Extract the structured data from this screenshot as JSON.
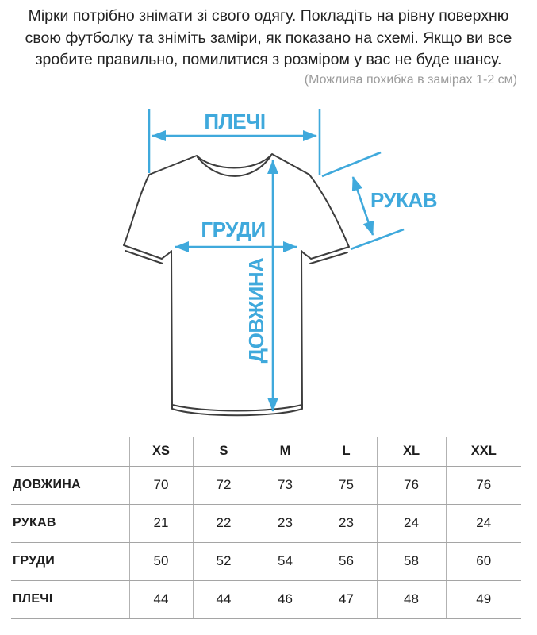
{
  "intro": {
    "lines": [
      "Мірки потрібно знімати зі свого одягу. Покладіть на рівну поверхню",
      "свою футболку та зніміть заміри, як показано на схемі. Якщо ви все",
      "зробите правильно, помилитися з розміром у вас не буде шансу."
    ],
    "note": "(Можлива похибка в замірах 1-2 см)"
  },
  "diagram": {
    "accent_color": "#3fa9dc",
    "outline_color": "#3d3d3d",
    "labels": {
      "shoulders": "ПЛЕЧІ",
      "sleeve": "РУКАВ",
      "chest": "ГРУДИ",
      "length": "ДОВЖИНА"
    }
  },
  "size_table": {
    "columns": [
      "XS",
      "S",
      "M",
      "L",
      "XL",
      "XXL"
    ],
    "rows": [
      {
        "label": "ДОВЖИНА",
        "values": [
          "70",
          "72",
          "73",
          "75",
          "76",
          "76"
        ]
      },
      {
        "label": "РУКАВ",
        "values": [
          "21",
          "22",
          "23",
          "23",
          "24",
          "24"
        ]
      },
      {
        "label": "ГРУДИ",
        "values": [
          "50",
          "52",
          "54",
          "56",
          "58",
          "60"
        ]
      },
      {
        "label": "ПЛЕЧІ",
        "values": [
          "44",
          "44",
          "46",
          "47",
          "48",
          "49"
        ]
      }
    ]
  }
}
